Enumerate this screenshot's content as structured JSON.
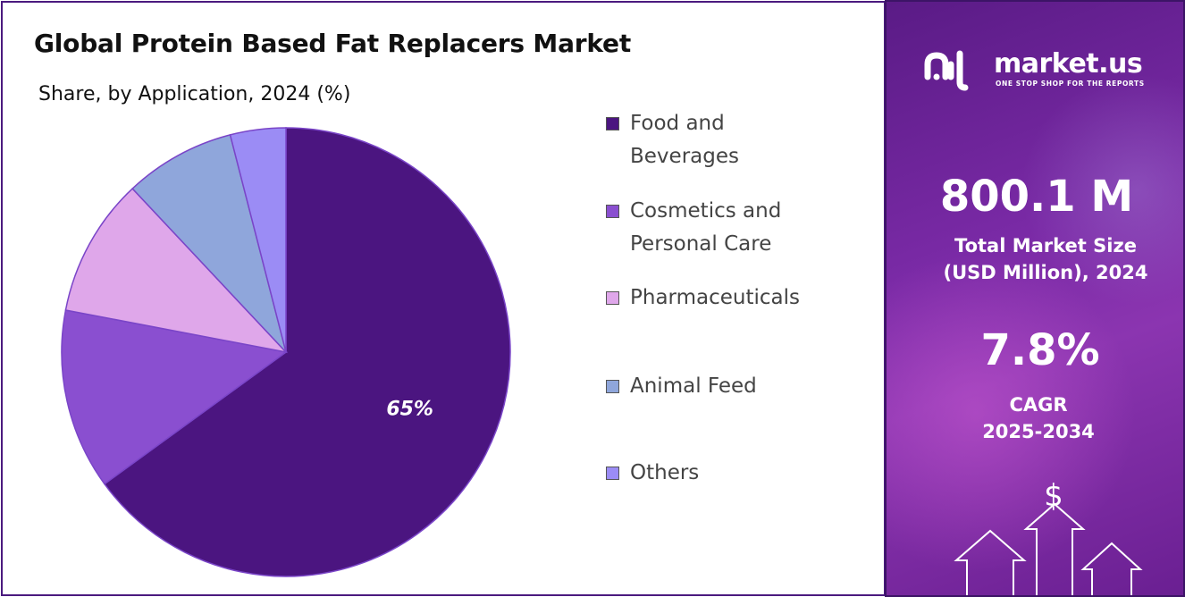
{
  "chart_data": {
    "type": "pie",
    "title": "Global Protein Based Fat Replacers Market",
    "subtitle": "Share, by Application, 2024 (%)",
    "categories": [
      "Food and Beverages",
      "Cosmetics and Personal Care",
      "Pharmaceuticals",
      "Animal Feed",
      "Others"
    ],
    "values": [
      65,
      13,
      10,
      8,
      4
    ],
    "colors": [
      "#4b1580",
      "#8a4fd0",
      "#dfa7ea",
      "#8fa6db",
      "#9b8cf5"
    ],
    "data_labels": [
      {
        "series_index": 0,
        "text": "65%"
      }
    ],
    "legend_position": "right"
  },
  "legend": {
    "items": [
      {
        "line1": "Food and",
        "line2": "Beverages",
        "color": "#4b1580"
      },
      {
        "line1": "Cosmetics and",
        "line2": "Personal Care",
        "color": "#8a4fd0"
      },
      {
        "line1": "Pharmaceuticals",
        "line2": "",
        "color": "#dfa7ea"
      },
      {
        "line1": "Animal Feed",
        "line2": "",
        "color": "#8fa6db"
      },
      {
        "line1": "Others",
        "line2": "",
        "color": "#9b8cf5"
      }
    ]
  },
  "sidebar": {
    "brand": "market.us",
    "tagline": "ONE STOP SHOP FOR THE REPORTS",
    "market_size_value": "800.1 M",
    "market_size_label_line1": "Total Market Size",
    "market_size_label_line2": "(USD Million), 2024",
    "cagr_value": "7.8%",
    "cagr_label_line1": "CAGR",
    "cagr_label_line2": "2025-2034",
    "dollar_symbol": "$",
    "icons": [
      "market-us-logo-icon",
      "dollar-growth-arrows-icon"
    ]
  }
}
